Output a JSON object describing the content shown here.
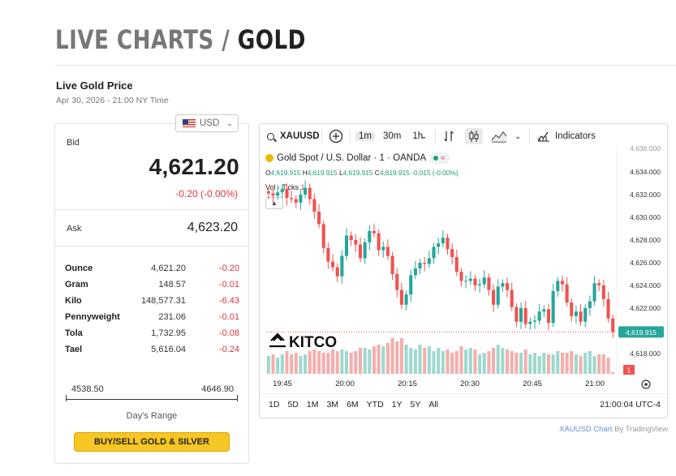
{
  "page": {
    "title_part1": "LIVE CHARTS",
    "title_sep": " / ",
    "title_part2": "GOLD"
  },
  "price_panel": {
    "heading": "Live Gold Price",
    "timestamp": "Apr 30, 2026 - 21:00 NY Time",
    "currency": "USD",
    "bid_label": "Bid",
    "bid": "4,621.20",
    "bid_change": "-0.20 (-0.00%)",
    "ask_label": "Ask",
    "ask": "4,623.20",
    "units": [
      {
        "name": "Ounce",
        "value": "4,621.20",
        "change": "-0.20"
      },
      {
        "name": "Gram",
        "value": "148.57",
        "change": "-0.01"
      },
      {
        "name": "Kilo",
        "value": "148,577.31",
        "change": "-6.43"
      },
      {
        "name": "Pennyweight",
        "value": "231.06",
        "change": "-0.01"
      },
      {
        "name": "Tola",
        "value": "1,732.95",
        "change": "-0.08"
      },
      {
        "name": "Tael",
        "value": "5,616.04",
        "change": "-0.24"
      }
    ],
    "range_low": "4538.50",
    "range_high": "4646.90",
    "range_label": "Day's Range",
    "buy_button": "BUY/SELL GOLD & SILVER"
  },
  "chart_toolbar": {
    "symbol": "XAUUSD",
    "plus": "+",
    "intervals": [
      "1m",
      "30m",
      "1h"
    ],
    "active_interval": "1m",
    "indicators": "Indicators"
  },
  "chart_legend": {
    "title": "Gold Spot / U.S. Dollar · 1 · OANDA",
    "o_label": "O",
    "o": "4,619.915",
    "h_label": "H",
    "h": "4,619.915",
    "l_label": "L",
    "l": "4,619.915",
    "c_label": "C",
    "c": "4,619.915",
    "chg": "-0.015 (-0.00%)",
    "vol_label": "Vol · Ticks",
    "vol_value": "1",
    "watermark": "KITCO"
  },
  "chart_data": {
    "type": "candlestick",
    "title": "Gold Spot / U.S. Dollar · 1 · OANDA",
    "y_ticks": [
      "4,634.000",
      "4,632.000",
      "4,630.000",
      "4,628.000",
      "4,626.000",
      "4,624.000",
      "4,622.000",
      "4,618.000"
    ],
    "y_top_partial": "4,636.000",
    "ylim": [
      4617.0,
      4636.0
    ],
    "x_ticks": [
      "19:45",
      "20:00",
      "20:15",
      "20:30",
      "20:45",
      "21:00"
    ],
    "last_price": "4,619.915",
    "last_volume": "1",
    "close": [
      4632.1,
      4631.9,
      4632.2,
      4632.5,
      4631.7,
      4631.6,
      4631.3,
      4632.0,
      4632.6,
      4631.6,
      4630.5,
      4629.4,
      4627.3,
      4626.1,
      4625.6,
      4624.8,
      4626.6,
      4628.4,
      4628.0,
      4627.6,
      4626.4,
      4627.8,
      4628.8,
      4628.6,
      4627.1,
      4627.4,
      4626.6,
      4625.0,
      4623.6,
      4622.3,
      4623.2,
      4624.9,
      4625.5,
      4626.0,
      4625.9,
      4626.4,
      4627.4,
      4627.7,
      4628.2,
      4627.2,
      4626.5,
      4625.2,
      4624.4,
      4624.4,
      4624.6,
      4624.0,
      4624.1,
      4624.7,
      4623.6,
      4622.3,
      4623.9,
      4624.2,
      4623.6,
      4622.1,
      4620.8,
      4622.0,
      4620.6,
      4620.8,
      4620.9,
      4621.7,
      4621.9,
      4620.7,
      4623.5,
      4624.4,
      4624.1,
      4622.5,
      4621.3,
      4621.7,
      4620.8,
      4622.0,
      4622.6,
      4624.2,
      4624.0,
      4622.8,
      4621.1,
      4619.9
    ],
    "volume": [
      11,
      12,
      10,
      12,
      14,
      12,
      13,
      11,
      12,
      14,
      15,
      14,
      13,
      13,
      15,
      14,
      15,
      14,
      13,
      14,
      16,
      16,
      15,
      17,
      18,
      17,
      19,
      22,
      20,
      22,
      18,
      16,
      15,
      18,
      16,
      17,
      14,
      16,
      14,
      15,
      13,
      14,
      17,
      15,
      16,
      15,
      12,
      13,
      14,
      16,
      18,
      16,
      15,
      14,
      13,
      13,
      15,
      12,
      13,
      11,
      13,
      12,
      12,
      14,
      13,
      13,
      14,
      12,
      11,
      13,
      14,
      11,
      12,
      12,
      10,
      1
    ]
  },
  "chart_bottom": {
    "ranges": [
      "1D",
      "5D",
      "1M",
      "3M",
      "6M",
      "YTD",
      "1Y",
      "5Y",
      "All"
    ],
    "time": "21:00:04 UTC-4"
  },
  "attribution": {
    "link": "XAUUSD Chart",
    "by": " By TradingView"
  },
  "colors": {
    "up": "#26a69a",
    "down": "#ef5350",
    "accent": "#f6c623"
  },
  "icons": [
    "us-flag-icon",
    "chevron-down-icon",
    "search-icon",
    "plus-circle-icon",
    "compare-icon",
    "candlestick-icon",
    "area-chart-icon",
    "indicators-icon",
    "settings-icon"
  ]
}
